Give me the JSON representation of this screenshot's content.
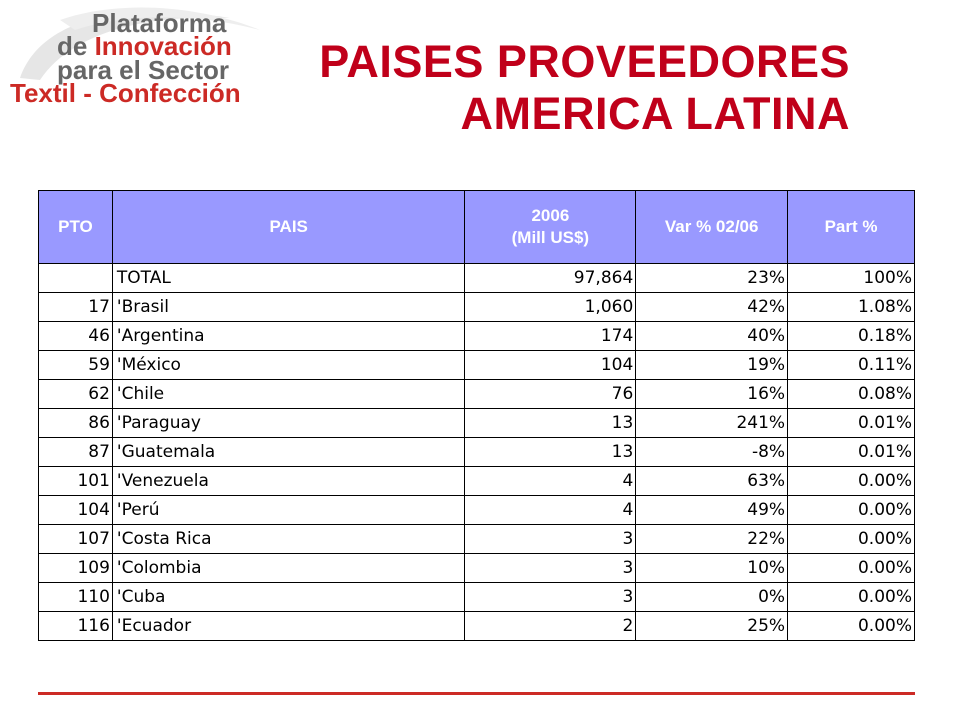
{
  "logo": {
    "line1": "Plataforma",
    "line2_prefix": "de ",
    "line2_highlight": "Innovación",
    "line3": "para el Sector",
    "line4": "Textil - Confección",
    "colors": {
      "red": "#cc2a25",
      "grey": "#666666"
    }
  },
  "title": {
    "line1": "PAISES PROVEEDORES",
    "line2": "AMERICA LATINA",
    "color": "#c0001a"
  },
  "table": {
    "header_color": "#9999ff",
    "headers": {
      "pto": "PTO",
      "pais": "PAIS",
      "value_line1": "2006",
      "value_line2": "(Mill US$)",
      "var": "Var % 02/06",
      "part": "Part %"
    },
    "rows": [
      {
        "pto": "",
        "pais": "TOTAL",
        "value": "97,864",
        "var": "23%",
        "part": "100%"
      },
      {
        "pto": "17",
        "pais": "'Brasil",
        "value": "1,060",
        "var": "42%",
        "part": "1.08%"
      },
      {
        "pto": "46",
        "pais": "'Argentina",
        "value": "174",
        "var": "40%",
        "part": "0.18%"
      },
      {
        "pto": "59",
        "pais": "'México",
        "value": "104",
        "var": "19%",
        "part": "0.11%"
      },
      {
        "pto": "62",
        "pais": "'Chile",
        "value": "76",
        "var": "16%",
        "part": "0.08%"
      },
      {
        "pto": "86",
        "pais": "'Paraguay",
        "value": "13",
        "var": "241%",
        "part": "0.01%"
      },
      {
        "pto": "87",
        "pais": "'Guatemala",
        "value": "13",
        "var": "-8%",
        "part": "0.01%"
      },
      {
        "pto": "101",
        "pais": "'Venezuela",
        "value": "4",
        "var": "63%",
        "part": "0.00%"
      },
      {
        "pto": "104",
        "pais": "'Perú",
        "value": "4",
        "var": "49%",
        "part": "0.00%"
      },
      {
        "pto": "107",
        "pais": "'Costa Rica",
        "value": "3",
        "var": "22%",
        "part": "0.00%"
      },
      {
        "pto": "109",
        "pais": "'Colombia",
        "value": "3",
        "var": "10%",
        "part": "0.00%"
      },
      {
        "pto": "110",
        "pais": "'Cuba",
        "value": "3",
        "var": "0%",
        "part": "0.00%"
      },
      {
        "pto": "116",
        "pais": "'Ecuador",
        "value": "2",
        "var": "25%",
        "part": "0.00%"
      }
    ]
  }
}
